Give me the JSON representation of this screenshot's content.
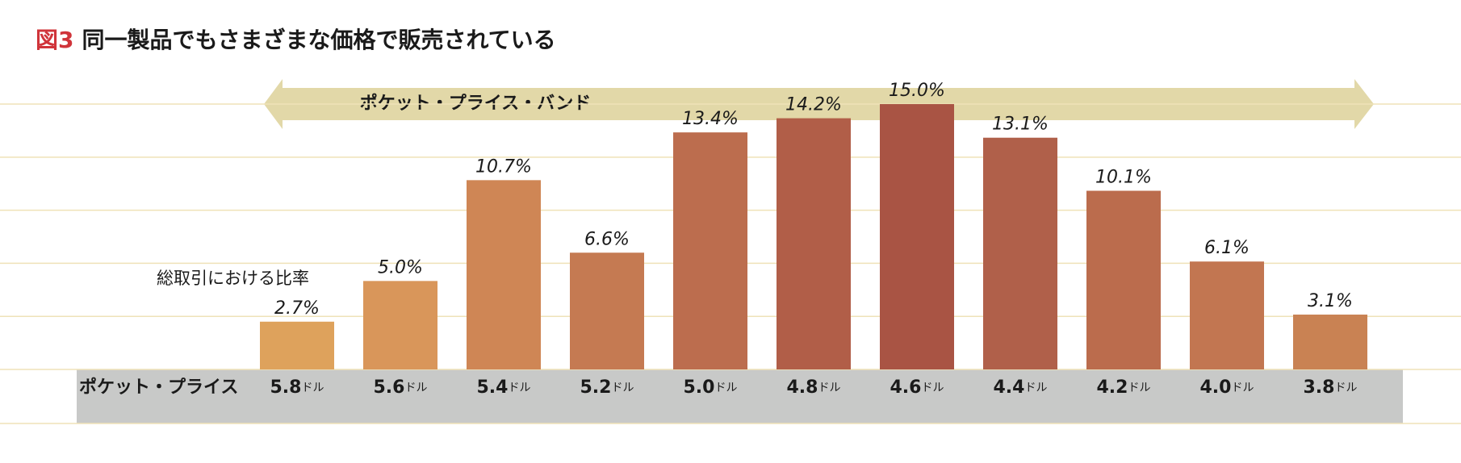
{
  "chart_data": {
    "type": "bar",
    "figure_label": "図3",
    "title": "同一製品でもさまざまな価格で販売されている",
    "band_label": "ポケット・プライス・バンド",
    "x_label": "ポケット・プライス",
    "y_label": "総取引における比率",
    "categories": [
      "5.8",
      "5.6",
      "5.4",
      "5.2",
      "5.0",
      "4.8",
      "4.6",
      "4.4",
      "4.2",
      "4.0",
      "3.8"
    ],
    "category_unit": "ドル",
    "values": [
      2.7,
      5.0,
      10.7,
      6.6,
      13.4,
      14.2,
      15.0,
      13.1,
      10.1,
      6.1,
      3.1
    ],
    "value_labels": [
      "2.7%",
      "5.0%",
      "10.7%",
      "6.6%",
      "13.4%",
      "14.2%",
      "15.0%",
      "13.1%",
      "10.1%",
      "6.1%",
      "3.1%"
    ],
    "colors": [
      "#dea25c",
      "#d9965a",
      "#cf8655",
      "#c57a52",
      "#bc6d4e",
      "#b15e48",
      "#a95444",
      "#b0604a",
      "#bb6c4d",
      "#c27651",
      "#c98253"
    ],
    "ylim": [
      0,
      18
    ],
    "yticks": [
      0,
      3,
      6,
      9,
      12,
      15
    ],
    "grid": true
  }
}
